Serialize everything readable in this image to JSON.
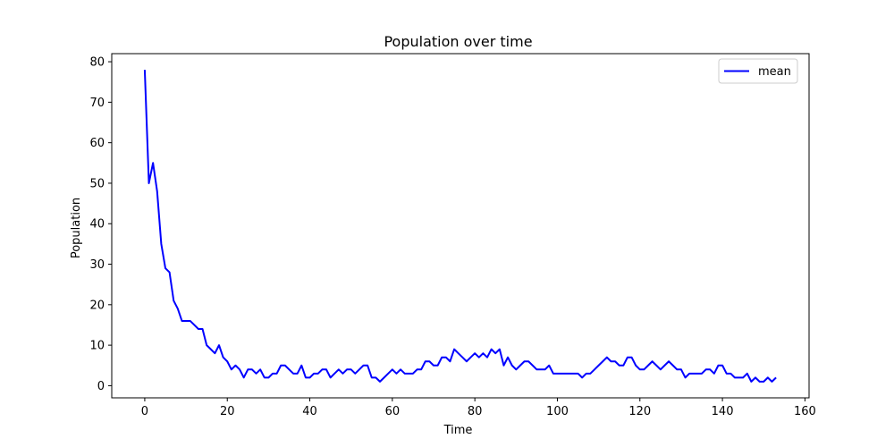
{
  "chart_data": {
    "type": "line",
    "title": "Population over time",
    "xlabel": "Time",
    "ylabel": "Population",
    "xlim": [
      -8,
      161
    ],
    "ylim": [
      -3,
      82
    ],
    "xticks": [
      0,
      20,
      40,
      60,
      80,
      100,
      120,
      140,
      160
    ],
    "yticks": [
      0,
      10,
      20,
      30,
      40,
      50,
      60,
      70,
      80
    ],
    "grid": false,
    "legend_position": "top-right",
    "series": [
      {
        "name": "mean",
        "color": "#0000ff",
        "x": [
          0,
          1,
          2,
          3,
          4,
          5,
          6,
          7,
          8,
          9,
          10,
          11,
          12,
          13,
          14,
          15,
          16,
          17,
          18,
          19,
          20,
          21,
          22,
          23,
          24,
          25,
          26,
          27,
          28,
          29,
          30,
          31,
          32,
          33,
          34,
          35,
          36,
          37,
          38,
          39,
          40,
          41,
          42,
          43,
          44,
          45,
          46,
          47,
          48,
          49,
          50,
          51,
          52,
          53,
          54,
          55,
          56,
          57,
          58,
          59,
          60,
          61,
          62,
          63,
          64,
          65,
          66,
          67,
          68,
          69,
          70,
          71,
          72,
          73,
          74,
          75,
          76,
          77,
          78,
          79,
          80,
          81,
          82,
          83,
          84,
          85,
          86,
          87,
          88,
          89,
          90,
          91,
          92,
          93,
          94,
          95,
          96,
          97,
          98,
          99,
          100,
          101,
          102,
          103,
          104,
          105,
          106,
          107,
          108,
          109,
          110,
          111,
          112,
          113,
          114,
          115,
          116,
          117,
          118,
          119,
          120,
          121,
          122,
          123,
          124,
          125,
          126,
          127,
          128,
          129,
          130,
          131,
          132,
          133,
          134,
          135,
          136,
          137,
          138,
          139,
          140,
          141,
          142,
          143,
          144,
          145,
          146,
          147,
          148,
          149,
          150,
          151,
          152,
          153
        ],
        "values": [
          78,
          50,
          55,
          48,
          35,
          29,
          28,
          21,
          19,
          16,
          16,
          16,
          15,
          14,
          14,
          10,
          9,
          8,
          10,
          7,
          6,
          4,
          5,
          4,
          2,
          4,
          4,
          3,
          4,
          2,
          2,
          3,
          3,
          5,
          5,
          4,
          3,
          3,
          5,
          2,
          2,
          3,
          3,
          4,
          4,
          2,
          3,
          4,
          3,
          4,
          4,
          3,
          4,
          5,
          5,
          2,
          2,
          1,
          2,
          3,
          4,
          3,
          4,
          3,
          3,
          3,
          4,
          4,
          6,
          6,
          5,
          5,
          7,
          7,
          6,
          9,
          8,
          7,
          6,
          7,
          8,
          7,
          8,
          7,
          9,
          8,
          9,
          5,
          7,
          5,
          4,
          5,
          6,
          6,
          5,
          4,
          4,
          4,
          5,
          3,
          3,
          3,
          3,
          3,
          3,
          3,
          2,
          3,
          3,
          4,
          5,
          6,
          7,
          6,
          6,
          5,
          5,
          7,
          7,
          5,
          4,
          4,
          5,
          6,
          5,
          4,
          5,
          6,
          5,
          4,
          4,
          2,
          3,
          3,
          3,
          3,
          4,
          4,
          3,
          5,
          5,
          3,
          3,
          2,
          2,
          2,
          3,
          1,
          2,
          1,
          1,
          2,
          1,
          2
        ]
      }
    ]
  }
}
